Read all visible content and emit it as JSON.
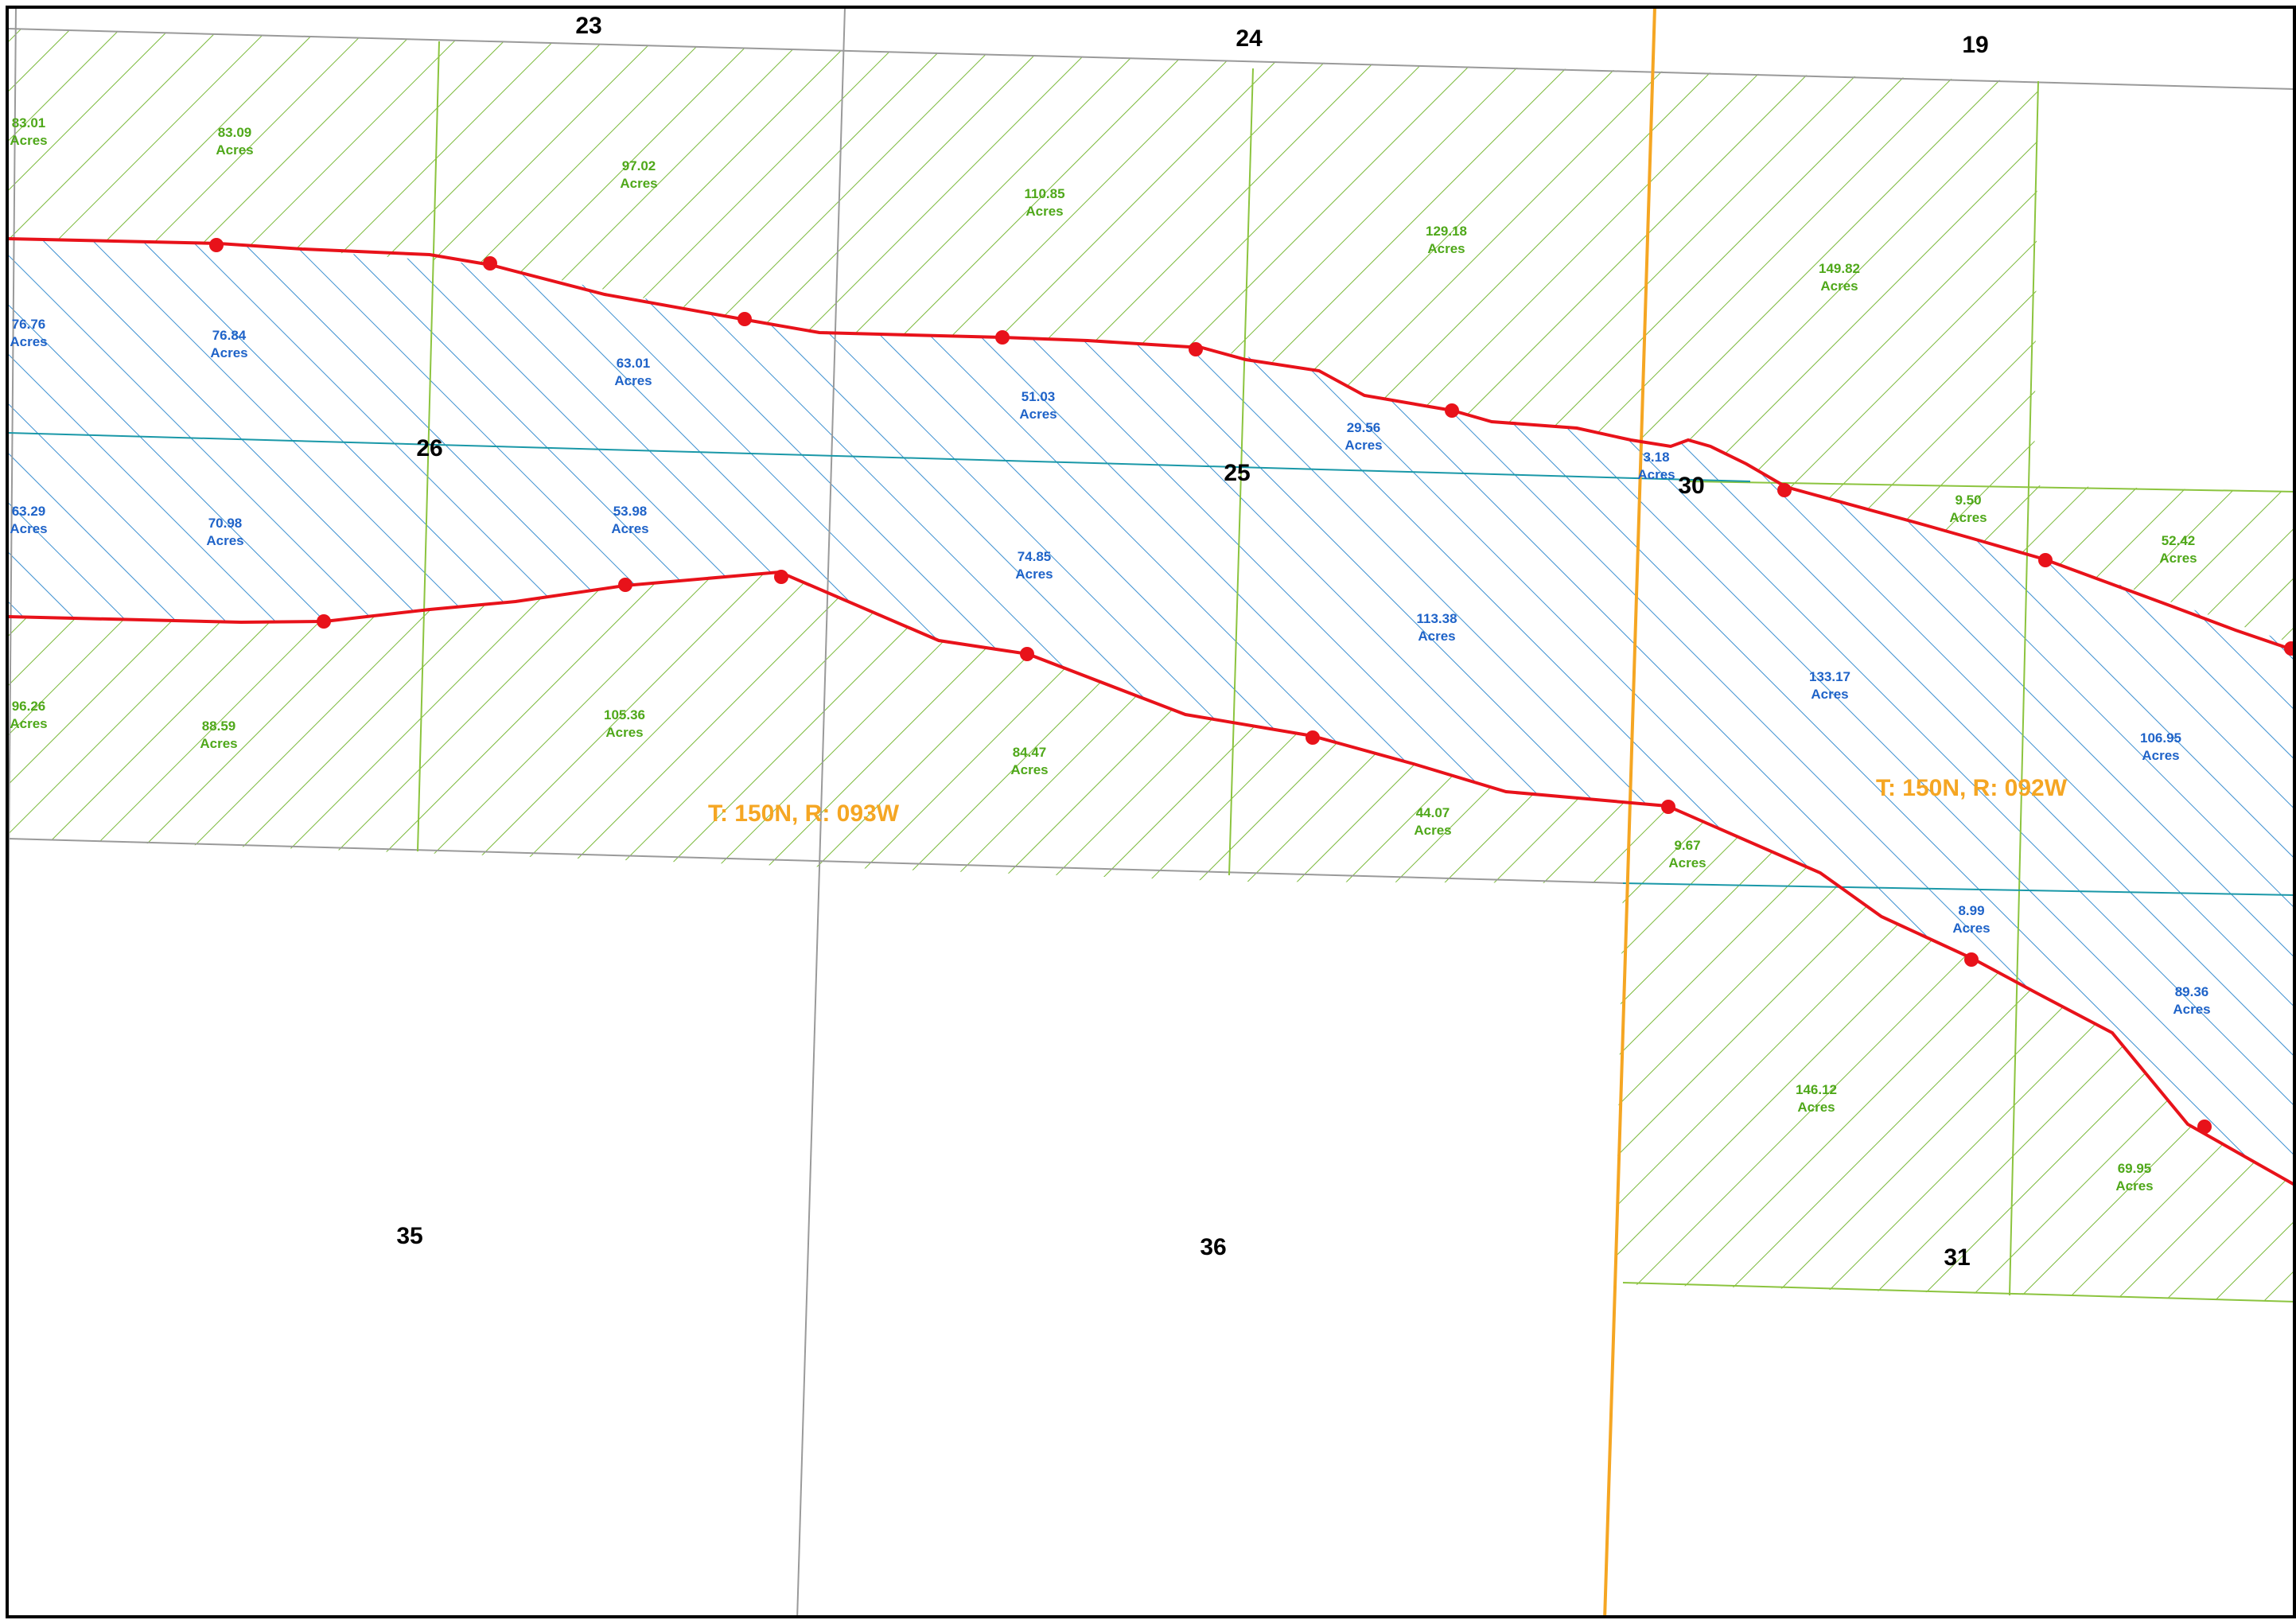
{
  "sections": [
    {
      "id": "sec-23",
      "label": "23"
    },
    {
      "id": "sec-24",
      "label": "24"
    },
    {
      "id": "sec-19",
      "label": "19"
    },
    {
      "id": "sec-26",
      "label": "26"
    },
    {
      "id": "sec-25",
      "label": "25"
    },
    {
      "id": "sec-30",
      "label": "30"
    },
    {
      "id": "sec-35",
      "label": "35"
    },
    {
      "id": "sec-36",
      "label": "36"
    },
    {
      "id": "sec-31",
      "label": "31"
    }
  ],
  "township_labels": [
    {
      "id": "twp-093w",
      "text": "T: 150N, R: 093W"
    },
    {
      "id": "twp-092w",
      "text": "T: 150N, R: 092W"
    }
  ],
  "acreage_unit": "Acres",
  "tracts": [
    {
      "id": "t01",
      "value": "83.01",
      "kind": "outside"
    },
    {
      "id": "t02",
      "value": "83.09",
      "kind": "outside"
    },
    {
      "id": "t03",
      "value": "97.02",
      "kind": "outside"
    },
    {
      "id": "t04",
      "value": "110.85",
      "kind": "outside"
    },
    {
      "id": "t05",
      "value": "129.18",
      "kind": "outside"
    },
    {
      "id": "t06",
      "value": "149.82",
      "kind": "outside"
    },
    {
      "id": "t07",
      "value": "76.76",
      "kind": "inside"
    },
    {
      "id": "t08",
      "value": "76.84",
      "kind": "inside"
    },
    {
      "id": "t09",
      "value": "63.01",
      "kind": "inside"
    },
    {
      "id": "t10",
      "value": "51.03",
      "kind": "inside"
    },
    {
      "id": "t11",
      "value": "29.56",
      "kind": "inside"
    },
    {
      "id": "t12",
      "value": "3.18",
      "kind": "inside"
    },
    {
      "id": "t13",
      "value": "9.50",
      "kind": "outside"
    },
    {
      "id": "t14",
      "value": "52.42",
      "kind": "outside"
    },
    {
      "id": "t15",
      "value": "63.29",
      "kind": "inside"
    },
    {
      "id": "t16",
      "value": "70.98",
      "kind": "inside"
    },
    {
      "id": "t17",
      "value": "53.98",
      "kind": "inside"
    },
    {
      "id": "t18",
      "value": "74.85",
      "kind": "inside"
    },
    {
      "id": "t19",
      "value": "113.38",
      "kind": "inside"
    },
    {
      "id": "t20",
      "value": "133.17",
      "kind": "inside"
    },
    {
      "id": "t21",
      "value": "106.95",
      "kind": "inside"
    },
    {
      "id": "t22",
      "value": "96.26",
      "kind": "outside"
    },
    {
      "id": "t23",
      "value": "88.59",
      "kind": "outside"
    },
    {
      "id": "t24",
      "value": "105.36",
      "kind": "outside"
    },
    {
      "id": "t25",
      "value": "84.47",
      "kind": "outside"
    },
    {
      "id": "t26",
      "value": "44.07",
      "kind": "outside"
    },
    {
      "id": "t27",
      "value": "9.67",
      "kind": "outside"
    },
    {
      "id": "t28",
      "value": "8.99",
      "kind": "inside"
    },
    {
      "id": "t29",
      "value": "89.36",
      "kind": "inside"
    },
    {
      "id": "t30",
      "value": "146.12",
      "kind": "outside"
    },
    {
      "id": "t31",
      "value": "69.95",
      "kind": "outside"
    }
  ],
  "colors": {
    "route": "#e8121a",
    "route_marker": "#e8121a",
    "inside_hatch": "#3b8fd0",
    "outside_hatch": "#7ab83a",
    "inside_boundary": "#1a98a8",
    "outside_boundary": "#8cc43f",
    "township_line": "#f5a623",
    "section_line": "#9a9a9a",
    "inside_label": "#1f63c8",
    "outside_label": "#4fa81a",
    "township_label": "#f5a623",
    "frame": "#000000"
  },
  "legend": "none"
}
